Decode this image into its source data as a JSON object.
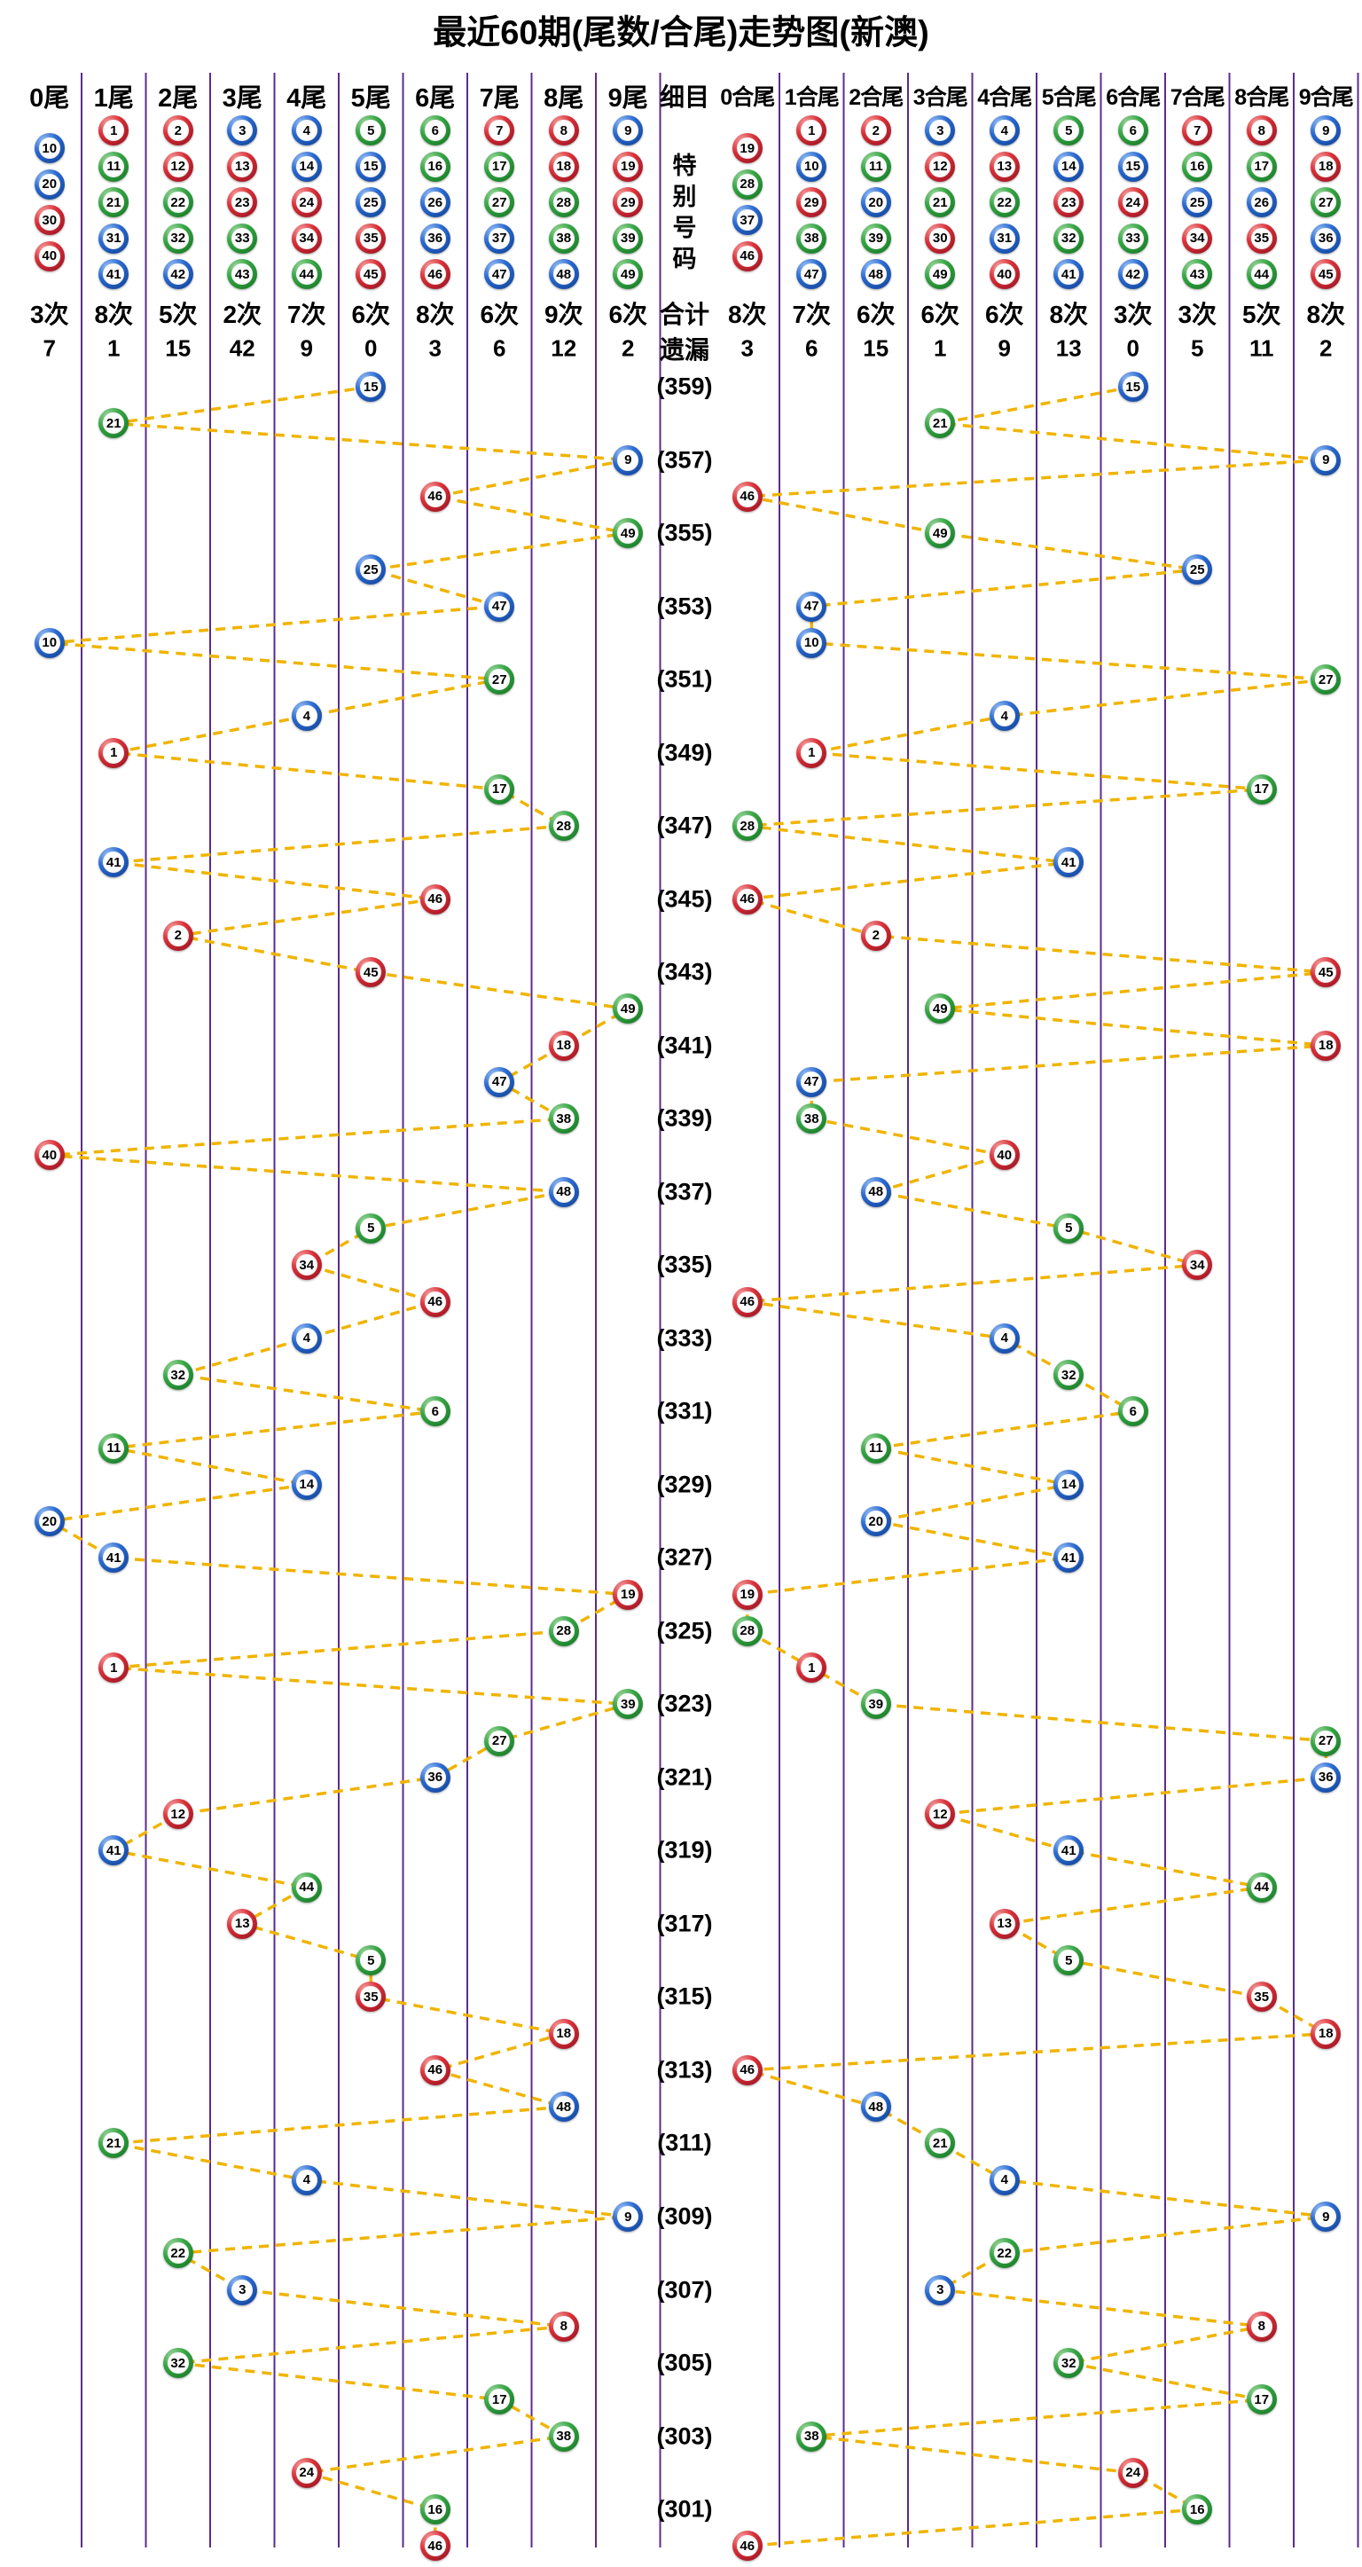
{
  "title": "最近60期(尾数/合尾)走势图(新澳)",
  "middle": {
    "header": "细目",
    "special_label": "特别号码",
    "total_label": "合计",
    "miss_label": "遗漏"
  },
  "left_section": {
    "columns": [
      {
        "label": "0尾",
        "members": [
          10,
          20,
          30,
          40
        ],
        "count": "3次",
        "miss": "7",
        "offset": true
      },
      {
        "label": "1尾",
        "members": [
          1,
          11,
          21,
          31,
          41
        ],
        "count": "8次",
        "miss": "1",
        "offset": false
      },
      {
        "label": "2尾",
        "members": [
          2,
          12,
          22,
          32,
          42
        ],
        "count": "5次",
        "miss": "15",
        "offset": false
      },
      {
        "label": "3尾",
        "members": [
          3,
          13,
          23,
          33,
          43
        ],
        "count": "2次",
        "miss": "42",
        "offset": false
      },
      {
        "label": "4尾",
        "members": [
          4,
          14,
          24,
          34,
          44
        ],
        "count": "7次",
        "miss": "9",
        "offset": false
      },
      {
        "label": "5尾",
        "members": [
          5,
          15,
          25,
          35,
          45
        ],
        "count": "6次",
        "miss": "0",
        "offset": false
      },
      {
        "label": "6尾",
        "members": [
          6,
          16,
          26,
          36,
          46
        ],
        "count": "8次",
        "miss": "3",
        "offset": false
      },
      {
        "label": "7尾",
        "members": [
          7,
          17,
          27,
          37,
          47
        ],
        "count": "6次",
        "miss": "6",
        "offset": false
      },
      {
        "label": "8尾",
        "members": [
          8,
          18,
          28,
          38,
          48
        ],
        "count": "9次",
        "miss": "12",
        "offset": false
      },
      {
        "label": "9尾",
        "members": [
          9,
          19,
          29,
          39,
          49
        ],
        "count": "6次",
        "miss": "2",
        "offset": false
      }
    ]
  },
  "right_section": {
    "columns": [
      {
        "label": "0合尾",
        "members": [
          19,
          28,
          37,
          46
        ],
        "count": "8次",
        "miss": "3",
        "offset": true
      },
      {
        "label": "1合尾",
        "members": [
          1,
          10,
          29,
          38,
          47
        ],
        "count": "7次",
        "miss": "6",
        "offset": false
      },
      {
        "label": "2合尾",
        "members": [
          2,
          11,
          20,
          39,
          48
        ],
        "count": "6次",
        "miss": "15",
        "offset": false
      },
      {
        "label": "3合尾",
        "members": [
          3,
          12,
          21,
          30,
          49
        ],
        "count": "6次",
        "miss": "1",
        "offset": false
      },
      {
        "label": "4合尾",
        "members": [
          4,
          13,
          22,
          31,
          40
        ],
        "count": "6次",
        "miss": "9",
        "offset": false
      },
      {
        "label": "5合尾",
        "members": [
          5,
          14,
          23,
          32,
          41
        ],
        "count": "8次",
        "miss": "13",
        "offset": false
      },
      {
        "label": "6合尾",
        "members": [
          6,
          15,
          24,
          33,
          42
        ],
        "count": "3次",
        "miss": "0",
        "offset": false
      },
      {
        "label": "7合尾",
        "members": [
          7,
          16,
          25,
          34,
          43
        ],
        "count": "3次",
        "miss": "5",
        "offset": false
      },
      {
        "label": "8合尾",
        "members": [
          8,
          17,
          26,
          35,
          44
        ],
        "count": "5次",
        "miss": "11",
        "offset": false
      },
      {
        "label": "9合尾",
        "members": [
          9,
          18,
          27,
          36,
          45
        ],
        "count": "8次",
        "miss": "2",
        "offset": false
      }
    ]
  },
  "chart_data": {
    "type": "scatter",
    "title": "最近60期(尾数/合尾)走势图(新澳)",
    "layout": "two mirrored trend panels: left columns = number tail digit 0-9, right columns = digit-sum tail 0-9, rows = periods 359 (top) down to 300 (bottom), dashed line connects consecutive draws",
    "period_labels": [
      "(359)",
      "(357)",
      "(355)",
      "(353)",
      "(351)",
      "(349)",
      "(347)",
      "(345)",
      "(343)",
      "(341)",
      "(339)",
      "(337)",
      "(335)",
      "(333)",
      "(331)",
      "(329)",
      "(327)",
      "(325)",
      "(323)",
      "(321)",
      "(319)",
      "(317)",
      "(315)",
      "(313)",
      "(311)",
      "(309)",
      "(307)",
      "(305)",
      "(303)",
      "(301)"
    ],
    "draws": [
      {
        "period": 359,
        "number": 15
      },
      {
        "period": 358,
        "number": 21
      },
      {
        "period": 357,
        "number": 9
      },
      {
        "period": 356,
        "number": 46
      },
      {
        "period": 355,
        "number": 49
      },
      {
        "period": 354,
        "number": 25
      },
      {
        "period": 353,
        "number": 47
      },
      {
        "period": 352,
        "number": 10
      },
      {
        "period": 351,
        "number": 27
      },
      {
        "period": 350,
        "number": 4
      },
      {
        "period": 349,
        "number": 1
      },
      {
        "period": 348,
        "number": 17
      },
      {
        "period": 347,
        "number": 28
      },
      {
        "period": 346,
        "number": 41
      },
      {
        "period": 345,
        "number": 46
      },
      {
        "period": 344,
        "number": 2
      },
      {
        "period": 343,
        "number": 45
      },
      {
        "period": 342,
        "number": 49
      },
      {
        "period": 341,
        "number": 18
      },
      {
        "period": 340,
        "number": 47
      },
      {
        "period": 339,
        "number": 38
      },
      {
        "period": 338,
        "number": 40
      },
      {
        "period": 337,
        "number": 48
      },
      {
        "period": 336,
        "number": 5
      },
      {
        "period": 335,
        "number": 34
      },
      {
        "period": 334,
        "number": 46
      },
      {
        "period": 333,
        "number": 4
      },
      {
        "period": 332,
        "number": 32
      },
      {
        "period": 331,
        "number": 6
      },
      {
        "period": 330,
        "number": 11
      },
      {
        "period": 329,
        "number": 14
      },
      {
        "period": 328,
        "number": 20
      },
      {
        "period": 327,
        "number": 41
      },
      {
        "period": 326,
        "number": 19
      },
      {
        "period": 325,
        "number": 28
      },
      {
        "period": 324,
        "number": 1
      },
      {
        "period": 323,
        "number": 39
      },
      {
        "period": 322,
        "number": 27
      },
      {
        "period": 321,
        "number": 36
      },
      {
        "period": 320,
        "number": 12
      },
      {
        "period": 319,
        "number": 41
      },
      {
        "period": 318,
        "number": 44
      },
      {
        "period": 317,
        "number": 13
      },
      {
        "period": 316,
        "number": 5
      },
      {
        "period": 315,
        "number": 35
      },
      {
        "period": 314,
        "number": 18
      },
      {
        "period": 313,
        "number": 46
      },
      {
        "period": 312,
        "number": 48
      },
      {
        "period": 311,
        "number": 21
      },
      {
        "period": 310,
        "number": 4
      },
      {
        "period": 309,
        "number": 9
      },
      {
        "period": 308,
        "number": 22
      },
      {
        "period": 307,
        "number": 3
      },
      {
        "period": 306,
        "number": 8
      },
      {
        "period": 305,
        "number": 32
      },
      {
        "period": 304,
        "number": 17
      },
      {
        "period": 303,
        "number": 38
      },
      {
        "period": 302,
        "number": 24
      },
      {
        "period": 301,
        "number": 16
      },
      {
        "period": 300,
        "number": 46
      }
    ],
    "ball_colors": {
      "red": [
        1,
        2,
        7,
        8,
        12,
        13,
        18,
        19,
        23,
        24,
        29,
        30,
        34,
        35,
        40,
        45,
        46
      ],
      "blue": [
        3,
        4,
        9,
        10,
        14,
        15,
        20,
        25,
        26,
        31,
        36,
        37,
        41,
        42,
        47,
        48
      ],
      "green": [
        5,
        6,
        11,
        16,
        17,
        21,
        22,
        27,
        28,
        32,
        33,
        38,
        39,
        43,
        44,
        49
      ]
    },
    "trend_line_color": "#F0B400",
    "column_line_color": "#5B2B8C",
    "grid": "vertical-only",
    "legend_position": "none"
  }
}
